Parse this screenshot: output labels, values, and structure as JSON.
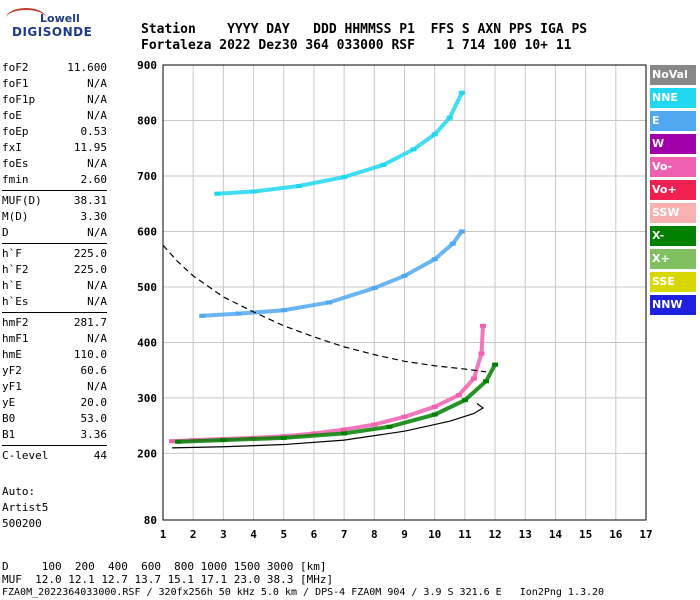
{
  "logo": {
    "line1": "Lowell",
    "line2": "DIGISONDE"
  },
  "header": {
    "line1": "Station    YYYY DAY   DDD HHMMSS P1  FFS S AXN PPS IGA PS",
    "line2": "Fortaleza 2022 Dez30 364 033000 RSF    1 714 100 10+ 11"
  },
  "params": [
    [
      {
        "k": "foF2",
        "v": "11.600"
      },
      {
        "k": "foF1",
        "v": "N/A"
      },
      {
        "k": "foF1p",
        "v": "N/A"
      },
      {
        "k": "foE",
        "v": "N/A"
      },
      {
        "k": "foEp",
        "v": "0.53"
      },
      {
        "k": "fxI",
        "v": "11.95"
      },
      {
        "k": "foEs",
        "v": "N/A"
      },
      {
        "k": "fmin",
        "v": "2.60"
      }
    ],
    [
      {
        "k": "MUF(D)",
        "v": "38.31"
      },
      {
        "k": "M(D)",
        "v": "3.30"
      },
      {
        "k": "D",
        "v": "N/A"
      }
    ],
    [
      {
        "k": "h`F",
        "v": "225.0"
      },
      {
        "k": "h`F2",
        "v": "225.0"
      },
      {
        "k": "h`E",
        "v": "N/A"
      },
      {
        "k": "h`Es",
        "v": "N/A"
      }
    ],
    [
      {
        "k": "hmF2",
        "v": "281.7"
      },
      {
        "k": "hmF1",
        "v": "N/A"
      },
      {
        "k": "hmE",
        "v": "110.0"
      },
      {
        "k": "yF2",
        "v": "60.6"
      },
      {
        "k": "yF1",
        "v": "N/A"
      },
      {
        "k": "yE",
        "v": "20.0"
      },
      {
        "k": "B0",
        "v": "53.0"
      },
      {
        "k": "B1",
        "v": "3.36"
      }
    ],
    [
      {
        "k": "C-level",
        "v": "44"
      }
    ]
  ],
  "auto": {
    "l1": "Auto:",
    "l2": "Artist5",
    "l3": "500200"
  },
  "footer": {
    "d_line": "D     100  200  400  600  800 1000 1500 3000 [km]",
    "muf_line": "MUF  12.0 12.1 12.7 13.7 15.1 17.1 23.0 38.3 [MHz]",
    "file_line": "FZA0M_2022364033000.RSF / 320fx256h 50 kHz 5.0 km / DPS-4 FZA0M 904 / 3.9 S 321.6 E   Ion2Png 1.3.20"
  },
  "legend": [
    {
      "label": "NoVal",
      "color": "#888888"
    },
    {
      "label": "NNE",
      "color": "#20d8f0"
    },
    {
      "label": "E",
      "color": "#50a8f0"
    },
    {
      "label": "W",
      "color": "#a000a8"
    },
    {
      "label": "Vo-",
      "color": "#f060b0"
    },
    {
      "label": "Vo+",
      "color": "#f02050"
    },
    {
      "label": "SSW",
      "color": "#f8b0b0"
    },
    {
      "label": "X-",
      "color": "#008000"
    },
    {
      "label": "X+",
      "color": "#80c060"
    },
    {
      "label": "SSE",
      "color": "#d8d800"
    },
    {
      "label": "NNW",
      "color": "#2020e0"
    }
  ],
  "chart_data": {
    "type": "scatter",
    "xlim": [
      1,
      17
    ],
    "ylim": [
      80,
      900
    ],
    "x_ticks": [
      1,
      2,
      3,
      4,
      5,
      6,
      7,
      8,
      9,
      10,
      11,
      12,
      13,
      14,
      15,
      16,
      17
    ],
    "y_ticks": [
      80,
      200,
      300,
      400,
      500,
      600,
      700,
      800,
      900
    ],
    "grid": true,
    "series": [
      {
        "name": "Vo-",
        "color": "#f060b0",
        "points": [
          [
            1.3,
            222
          ],
          [
            2,
            224
          ],
          [
            3,
            226
          ],
          [
            4,
            228
          ],
          [
            5,
            231
          ],
          [
            6,
            236
          ],
          [
            7,
            243
          ],
          [
            8,
            252
          ],
          [
            9,
            266
          ],
          [
            10,
            284
          ],
          [
            10.8,
            305
          ],
          [
            11.3,
            335
          ],
          [
            11.55,
            380
          ],
          [
            11.6,
            430
          ]
        ]
      },
      {
        "name": "X-",
        "color": "#008000",
        "points": [
          [
            1.5,
            221
          ],
          [
            3,
            224
          ],
          [
            5,
            228
          ],
          [
            7,
            236
          ],
          [
            8.5,
            248
          ],
          [
            10,
            270
          ],
          [
            11,
            296
          ],
          [
            11.7,
            330
          ],
          [
            12,
            360
          ]
        ]
      },
      {
        "name": "E",
        "color": "#50a8f0",
        "points": [
          [
            2.3,
            448
          ],
          [
            3.5,
            452
          ],
          [
            5,
            458
          ],
          [
            6.5,
            472
          ],
          [
            8,
            498
          ],
          [
            9,
            520
          ],
          [
            10,
            550
          ],
          [
            10.6,
            578
          ],
          [
            10.9,
            600
          ]
        ]
      },
      {
        "name": "NNE",
        "color": "#20d8f0",
        "points": [
          [
            2.8,
            668
          ],
          [
            4,
            672
          ],
          [
            5.5,
            682
          ],
          [
            7,
            698
          ],
          [
            8.3,
            720
          ],
          [
            9.3,
            748
          ],
          [
            10,
            775
          ],
          [
            10.5,
            805
          ],
          [
            10.9,
            850
          ]
        ]
      }
    ],
    "fit_curves": [
      {
        "name": "profile",
        "style": "solid",
        "points": [
          [
            1.3,
            210
          ],
          [
            3,
            212
          ],
          [
            5,
            216
          ],
          [
            7,
            224
          ],
          [
            9,
            240
          ],
          [
            10.5,
            258
          ],
          [
            11.3,
            272
          ],
          [
            11.6,
            282
          ],
          [
            11.4,
            290
          ]
        ]
      },
      {
        "name": "model",
        "style": "dashed",
        "points": [
          [
            1,
            575
          ],
          [
            1.5,
            545
          ],
          [
            2,
            520
          ],
          [
            3,
            482
          ],
          [
            4,
            455
          ],
          [
            5,
            430
          ],
          [
            6,
            410
          ],
          [
            7,
            392
          ],
          [
            8,
            378
          ],
          [
            9,
            366
          ],
          [
            10,
            358
          ],
          [
            11,
            352
          ],
          [
            11.7,
            347
          ]
        ]
      }
    ]
  }
}
